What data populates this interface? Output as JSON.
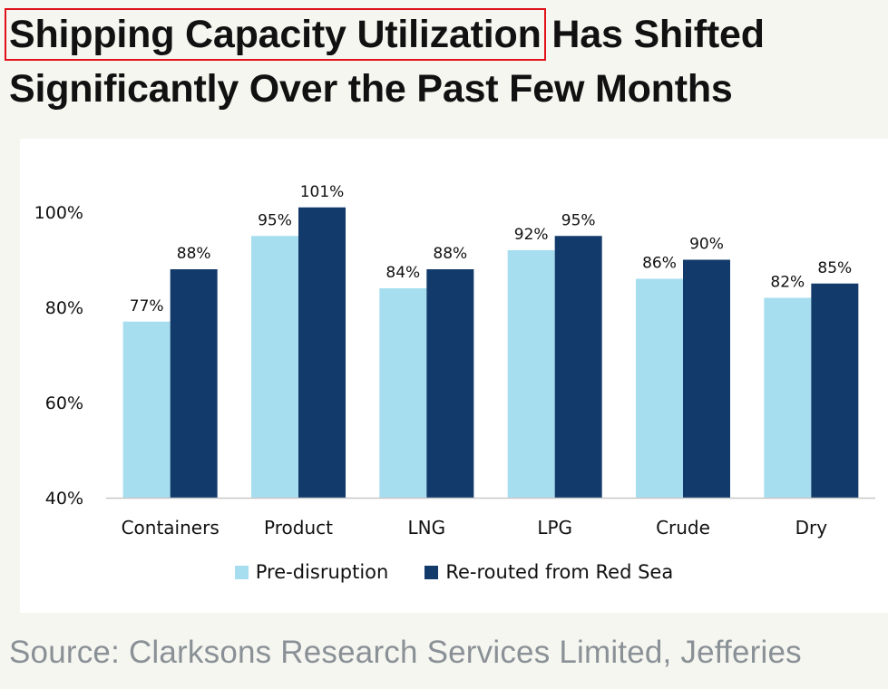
{
  "title": {
    "highlighted": "Shipping Capacity Utilization",
    "rest": " Has Shifted Significantly Over the Past Few Months"
  },
  "source": "Source: Clarksons Research Services Limited, Jefferies",
  "colors": {
    "pre": "#a6def0",
    "rerouted": "#123a6b",
    "highlight": "#e0111b"
  },
  "chart_data": {
    "type": "bar",
    "title": "",
    "xlabel": "",
    "ylabel": "",
    "ylim": [
      40,
      100
    ],
    "yticks": [
      40,
      60,
      80,
      100
    ],
    "ytick_labels": [
      "40%",
      "60%",
      "80%",
      "100%"
    ],
    "categories": [
      "Containers",
      "Product",
      "LNG",
      "LPG",
      "Crude",
      "Dry"
    ],
    "series": [
      {
        "name": "Pre-disruption",
        "color": "#a6def0",
        "values": [
          77,
          95,
          84,
          92,
          86,
          82
        ],
        "labels": [
          "77%",
          "95%",
          "84%",
          "92%",
          "86%",
          "82%"
        ]
      },
      {
        "name": "Re-routed from Red Sea",
        "color": "#123a6b",
        "values": [
          88,
          101,
          88,
          95,
          90,
          85
        ],
        "labels": [
          "88%",
          "101%",
          "88%",
          "95%",
          "90%",
          "85%"
        ]
      }
    ],
    "legend_position": "bottom"
  }
}
